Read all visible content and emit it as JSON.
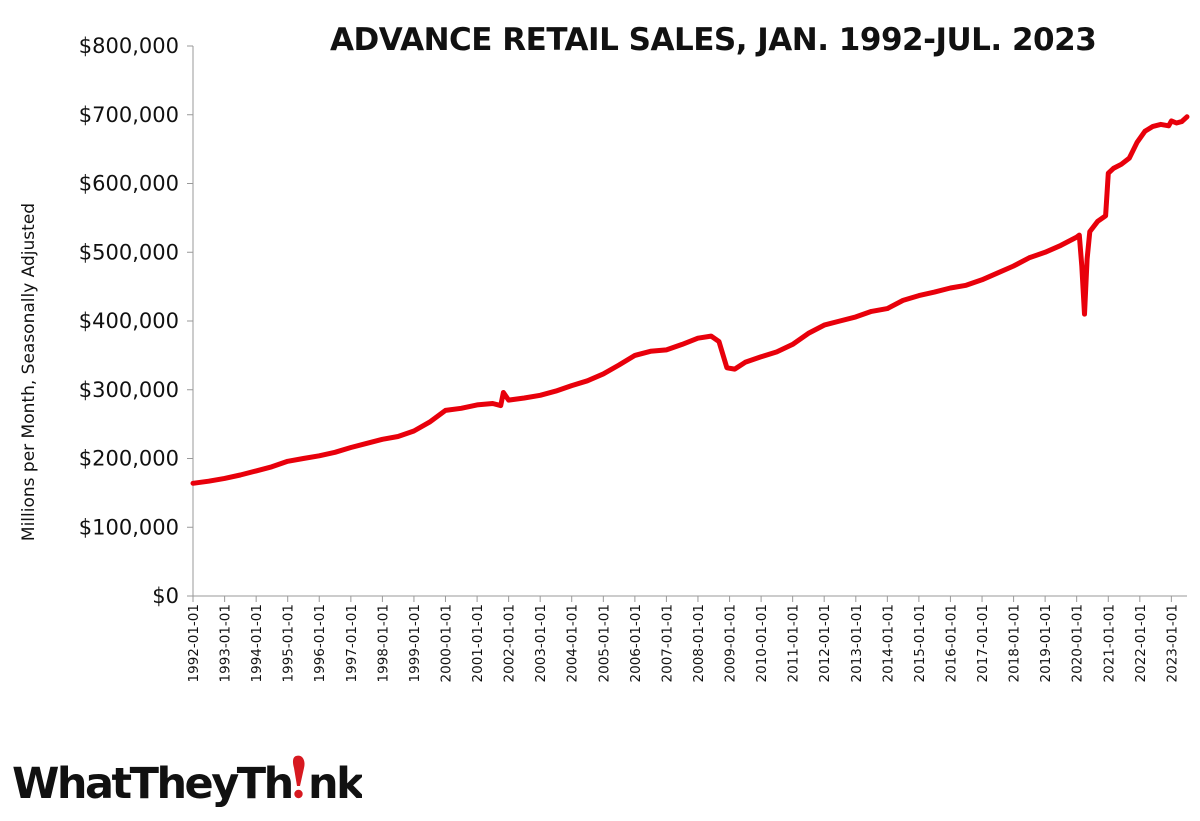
{
  "chart_data": {
    "type": "line",
    "title": "ADVANCE RETAIL SALES, JAN. 1992-JUL. 2023",
    "xlabel": "",
    "ylabel": "Millions per Month, Seasonally Adjusted",
    "ylim": [
      0,
      800000
    ],
    "yticks": [
      "$0",
      "$100,000",
      "$200,000",
      "$300,000",
      "$400,000",
      "$500,000",
      "$600,000",
      "$700,000",
      "$800,000"
    ],
    "xlim": [
      "1992-01-01",
      "2023-07-01"
    ],
    "xticks": [
      "1992-01-01",
      "1993-01-01",
      "1994-01-01",
      "1995-01-01",
      "1996-01-01",
      "1997-01-01",
      "1998-01-01",
      "1999-01-01",
      "2000-01-01",
      "2001-01-01",
      "2002-01-01",
      "2003-01-01",
      "2004-01-01",
      "2005-01-01",
      "2006-01-01",
      "2007-01-01",
      "2008-01-01",
      "2009-01-01",
      "2010-01-01",
      "2011-01-01",
      "2012-01-01",
      "2013-01-01",
      "2014-01-01",
      "2015-01-01",
      "2016-01-01",
      "2017-01-01",
      "2018-01-01",
      "2019-01-01",
      "2020-01-01",
      "2021-01-01",
      "2022-01-01",
      "2023-01-01"
    ],
    "grid": false,
    "series_color": "#e8000b",
    "series": [
      {
        "x": [
          "1992-01-01",
          "1992-07-01",
          "1993-01-01",
          "1993-07-01",
          "1994-01-01",
          "1994-07-01",
          "1995-01-01",
          "1995-07-01",
          "1996-01-01",
          "1996-07-01",
          "1997-01-01",
          "1997-07-01",
          "1998-01-01",
          "1998-07-01",
          "1999-01-01",
          "1999-07-01",
          "2000-01-01",
          "2000-07-01",
          "2001-01-01",
          "2001-07-01",
          "2001-10-01",
          "2001-11-01",
          "2002-01-01",
          "2002-07-01",
          "2003-01-01",
          "2003-07-01",
          "2004-01-01",
          "2004-07-01",
          "2005-01-01",
          "2005-07-01",
          "2006-01-01",
          "2006-07-01",
          "2007-01-01",
          "2007-07-01",
          "2008-01-01",
          "2008-06-01",
          "2008-09-01",
          "2008-12-01",
          "2009-03-01",
          "2009-07-01",
          "2010-01-01",
          "2010-07-01",
          "2011-01-01",
          "2011-07-01",
          "2012-01-01",
          "2012-07-01",
          "2013-01-01",
          "2013-07-01",
          "2014-01-01",
          "2014-07-01",
          "2015-01-01",
          "2015-07-01",
          "2016-01-01",
          "2016-07-01",
          "2017-01-01",
          "2017-07-01",
          "2018-01-01",
          "2018-07-01",
          "2019-01-01",
          "2019-07-01",
          "2020-01-01",
          "2020-02-01",
          "2020-03-01",
          "2020-04-01",
          "2020-05-01",
          "2020-06-01",
          "2020-09-01",
          "2020-12-01",
          "2021-01-01",
          "2021-03-01",
          "2021-06-01",
          "2021-09-01",
          "2021-12-01",
          "2022-03-01",
          "2022-06-01",
          "2022-09-01",
          "2022-12-01",
          "2023-01-01",
          "2023-03-01",
          "2023-05-01",
          "2023-07-01"
        ],
        "values": [
          164000,
          167000,
          171000,
          176000,
          182000,
          188000,
          196000,
          200000,
          204000,
          209000,
          216000,
          222000,
          228000,
          232000,
          240000,
          253000,
          270000,
          273000,
          278000,
          280000,
          277000,
          296000,
          285000,
          288000,
          292000,
          298000,
          306000,
          313000,
          323000,
          336000,
          350000,
          356000,
          358000,
          366000,
          375000,
          378000,
          370000,
          332000,
          330000,
          340000,
          348000,
          355000,
          366000,
          382000,
          394000,
          400000,
          406000,
          414000,
          418000,
          430000,
          437000,
          442000,
          448000,
          452000,
          460000,
          470000,
          480000,
          492000,
          500000,
          510000,
          522000,
          525000,
          480000,
          410000,
          490000,
          530000,
          545000,
          553000,
          615000,
          622000,
          628000,
          637000,
          660000,
          676000,
          683000,
          686000,
          684000,
          691000,
          688000,
          690000,
          697000
        ]
      }
    ]
  },
  "brand": {
    "name": "WhatTheyThink"
  }
}
